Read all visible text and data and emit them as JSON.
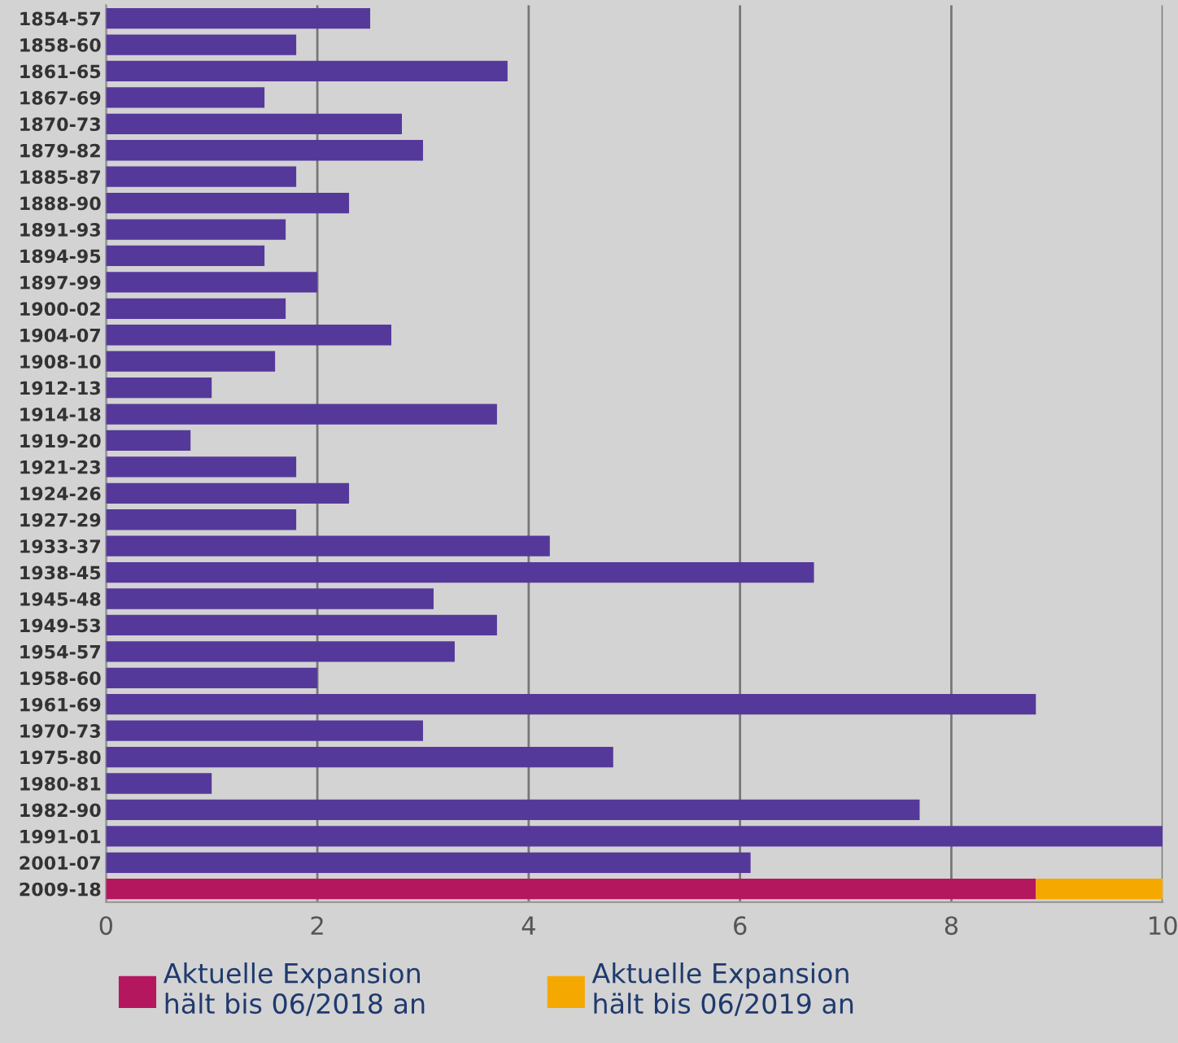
{
  "chart_data": {
    "type": "bar",
    "orientation": "horizontal",
    "stacked": true,
    "categories": [
      "1854-57",
      "1858-60",
      "1861-65",
      "1867-69",
      "1870-73",
      "1879-82",
      "1885-87",
      "1888-90",
      "1891-93",
      "1894-95",
      "1897-99",
      "1900-02",
      "1904-07",
      "1908-10",
      "1912-13",
      "1914-18",
      "1919-20",
      "1921-23",
      "1924-26",
      "1927-29",
      "1933-37",
      "1938-45",
      "1945-48",
      "1949-53",
      "1954-57",
      "1958-60",
      "1961-69",
      "1970-73",
      "1975-80",
      "1980-81",
      "1982-90",
      "1991-01",
      "2001-07",
      "2009-18"
    ],
    "series": [
      {
        "color": "#55399a",
        "values": [
          2.5,
          1.8,
          3.8,
          1.5,
          2.8,
          3.0,
          1.8,
          2.3,
          1.7,
          1.5,
          2.0,
          1.7,
          2.7,
          1.6,
          1.0,
          3.7,
          0.8,
          1.8,
          2.3,
          1.8,
          4.2,
          6.7,
          3.1,
          3.7,
          3.3,
          2.0,
          8.8,
          3.0,
          4.8,
          1.0,
          7.7,
          10.0,
          6.1,
          null
        ]
      },
      {
        "name": "Aktuelle Expansion\nhält bis 06/2018 an",
        "color": "#b5175f",
        "values": [
          null,
          null,
          null,
          null,
          null,
          null,
          null,
          null,
          null,
          null,
          null,
          null,
          null,
          null,
          null,
          null,
          null,
          null,
          null,
          null,
          null,
          null,
          null,
          null,
          null,
          null,
          null,
          null,
          null,
          null,
          null,
          null,
          null,
          8.8
        ]
      },
      {
        "name": "Aktuelle Expansion\nhält bis 06/2019 an",
        "color": "#f5a800",
        "values": [
          null,
          null,
          null,
          null,
          null,
          null,
          null,
          null,
          null,
          null,
          null,
          null,
          null,
          null,
          null,
          null,
          null,
          null,
          null,
          null,
          null,
          null,
          null,
          null,
          null,
          null,
          null,
          null,
          null,
          null,
          null,
          null,
          null,
          1.2
        ]
      }
    ],
    "xlim": [
      0,
      10
    ],
    "xticks": [
      0,
      2,
      4,
      6,
      8,
      10
    ],
    "grid": "x",
    "legend": "bottom"
  }
}
